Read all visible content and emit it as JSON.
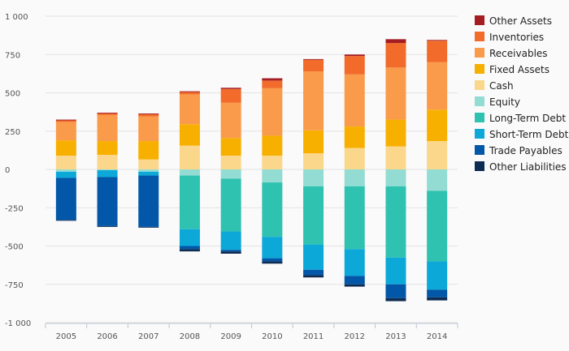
{
  "chart_data": {
    "type": "bar",
    "stacked": true,
    "categories": [
      "2005",
      "2006",
      "2007",
      "2008",
      "2009",
      "2010",
      "2011",
      "2012",
      "2013",
      "2014"
    ],
    "ylim": [
      -1000,
      1000
    ],
    "yticks": [
      1000,
      750,
      500,
      250,
      0,
      -250,
      -500,
      -750,
      -1000
    ],
    "ytick_labels": [
      "1 000",
      "750",
      "500",
      "250",
      "0",
      "-250",
      "-500",
      "-750",
      "-1 000"
    ],
    "grid": true,
    "legend_position": "right",
    "series": [
      {
        "name": "Other Assets",
        "color": "#a31d22",
        "values": [
          5,
          5,
          5,
          5,
          8,
          15,
          5,
          10,
          25,
          5
        ]
      },
      {
        "name": "Inventories",
        "color": "#f26b2a",
        "values": [
          10,
          10,
          15,
          15,
          90,
          50,
          75,
          120,
          160,
          140
        ]
      },
      {
        "name": "Receivables",
        "color": "#f99b4a",
        "values": [
          120,
          170,
          160,
          195,
          230,
          310,
          385,
          340,
          340,
          310
        ]
      },
      {
        "name": "Fixed Assets",
        "color": "#f8b000",
        "values": [
          100,
          90,
          120,
          140,
          115,
          130,
          150,
          140,
          175,
          205
        ]
      },
      {
        "name": "Cash",
        "color": "#fbd78b",
        "values": [
          90,
          95,
          65,
          155,
          90,
          90,
          105,
          140,
          150,
          185
        ]
      },
      {
        "name": "Equity",
        "color": "#93dcd3",
        "values": [
          -15,
          -5,
          -15,
          -40,
          -60,
          -85,
          -110,
          -110,
          -110,
          -140
        ]
      },
      {
        "name": "Long-Term Debt",
        "color": "#30c2b0",
        "values": [
          0,
          0,
          0,
          -350,
          -345,
          -355,
          -380,
          -410,
          -465,
          -460
        ]
      },
      {
        "name": "Short-Term Debt",
        "color": "#0ca8d8",
        "values": [
          -40,
          -45,
          -25,
          -110,
          -120,
          -140,
          -165,
          -175,
          -175,
          -185
        ]
      },
      {
        "name": "Trade Payables",
        "color": "#0257a8",
        "values": [
          -275,
          -320,
          -335,
          -20,
          -10,
          -20,
          -35,
          -55,
          -90,
          -50
        ]
      },
      {
        "name": "Other Liabilities",
        "color": "#0d2c54",
        "values": [
          -5,
          -5,
          -5,
          -15,
          -15,
          -15,
          -15,
          -15,
          -20,
          -20
        ]
      }
    ]
  }
}
